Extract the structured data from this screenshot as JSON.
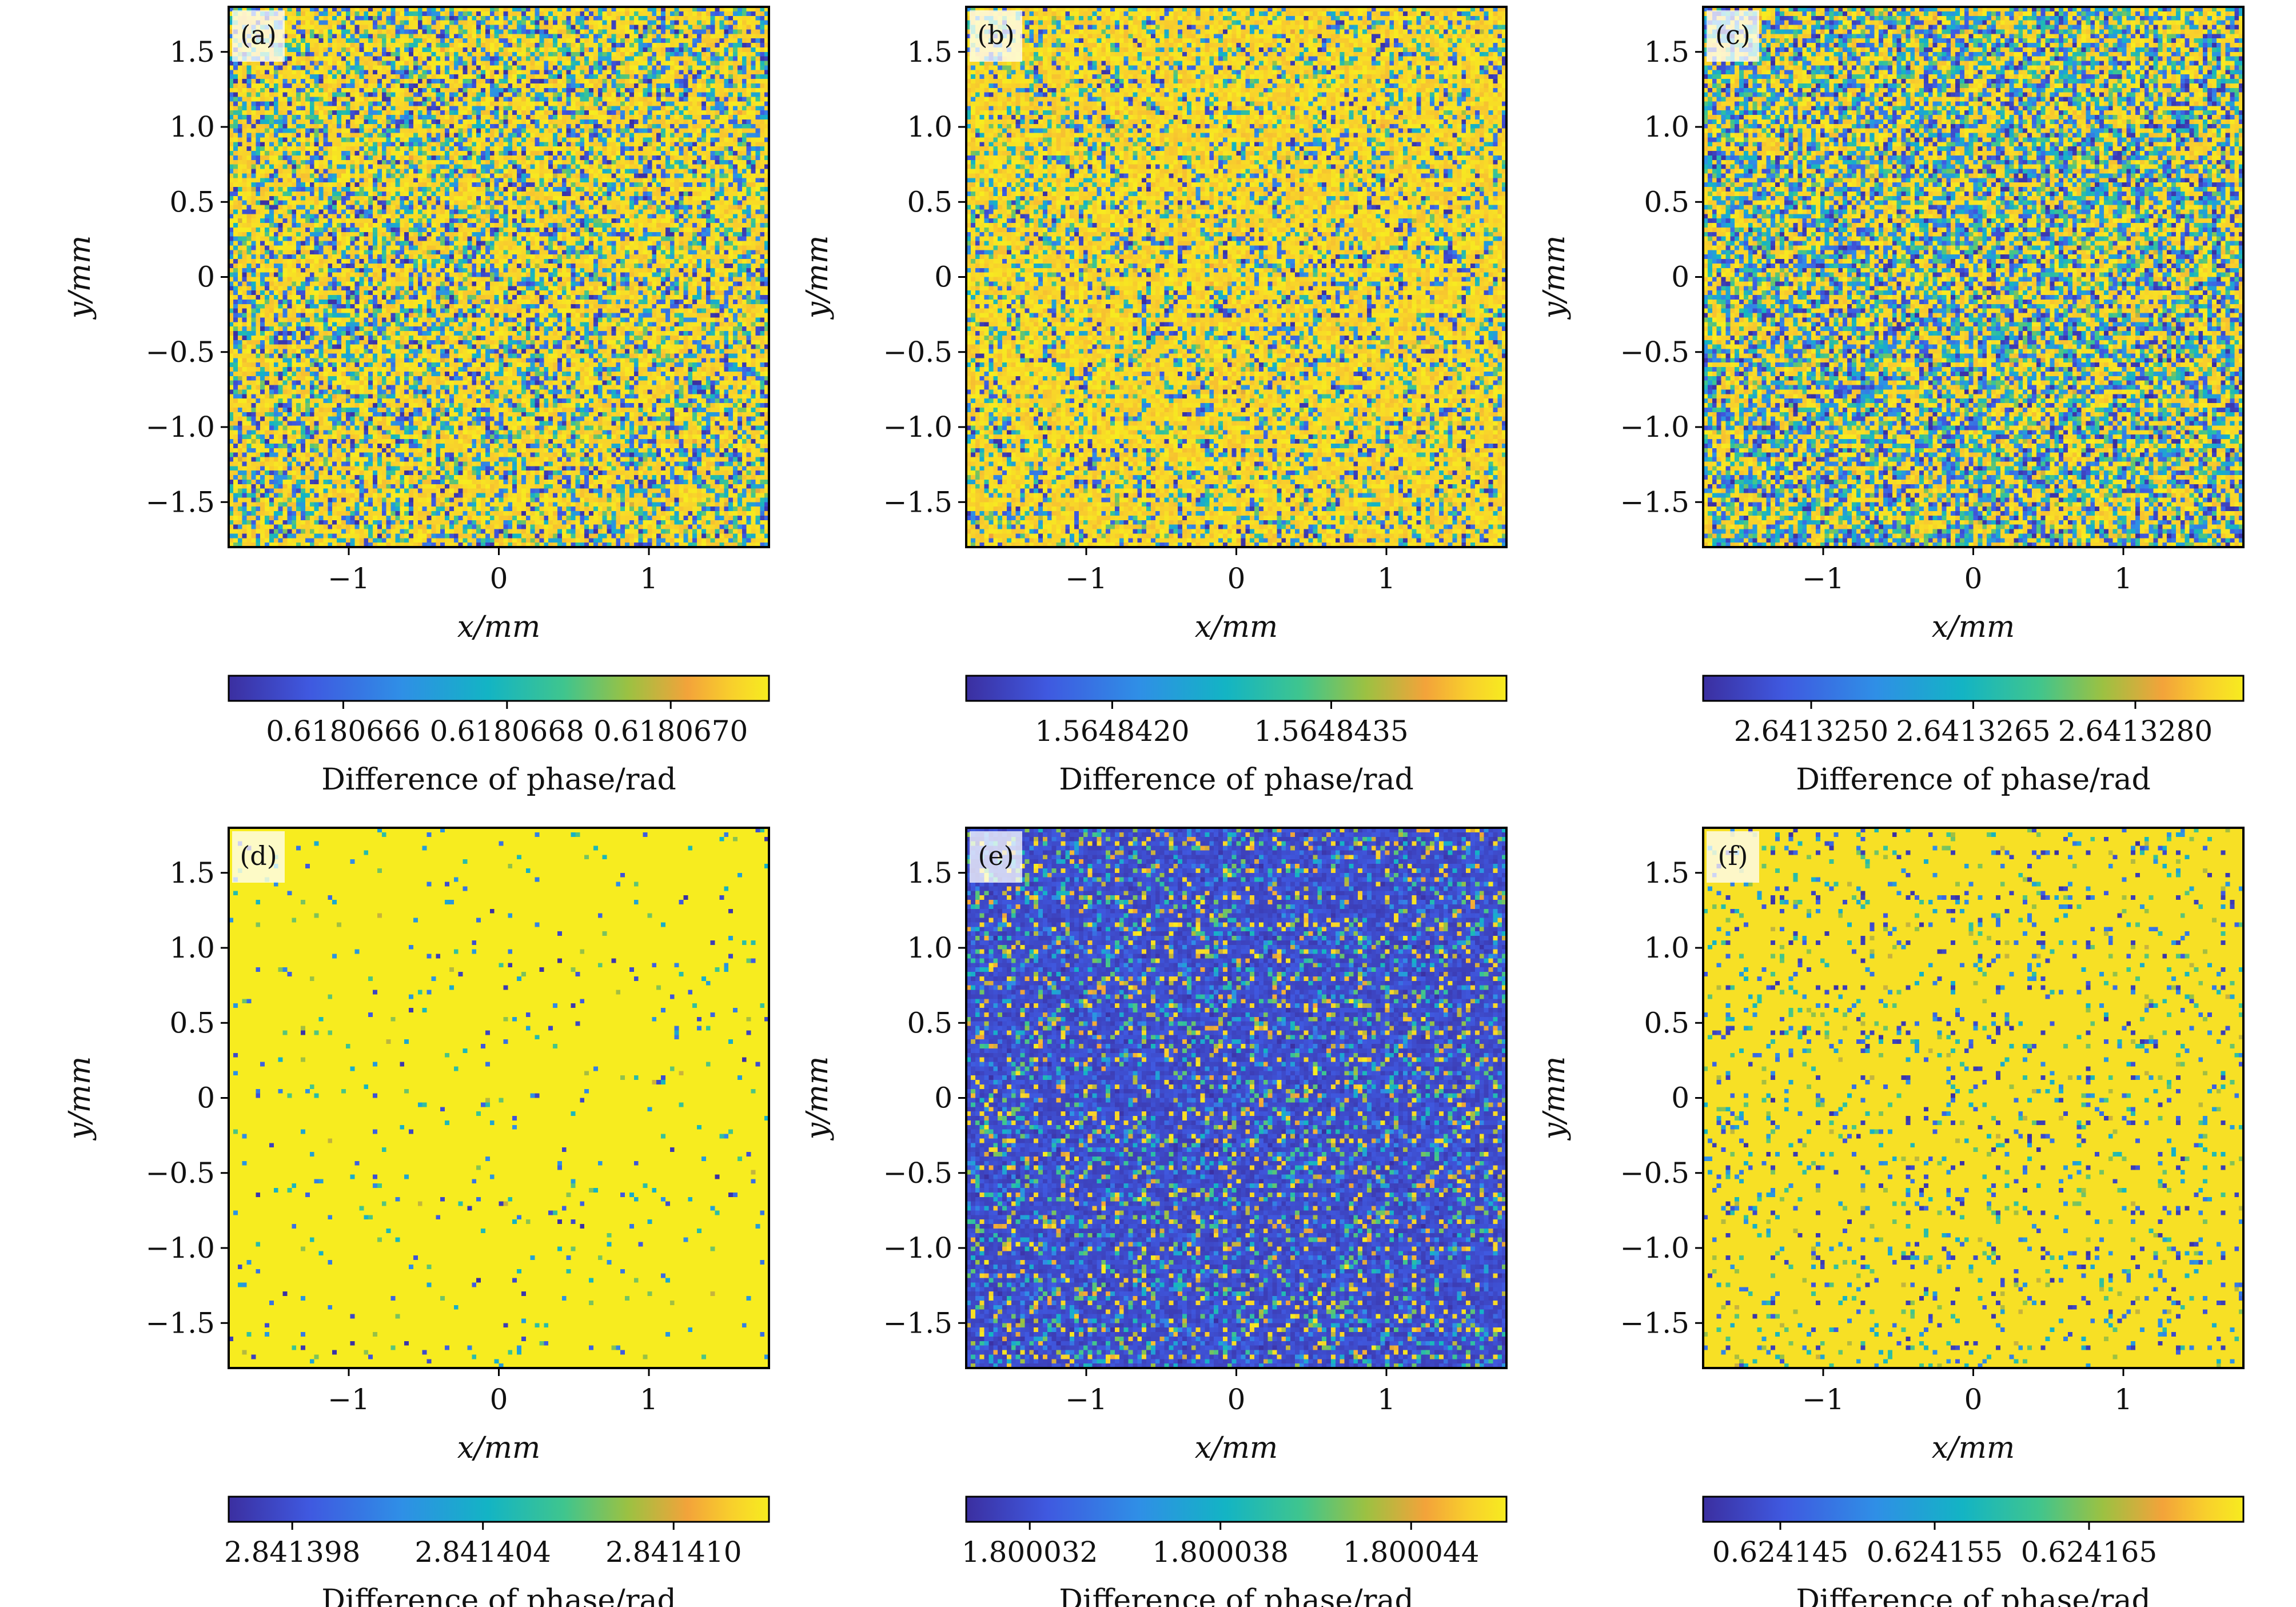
{
  "colors": {
    "viridis_low": "#3b2fa0",
    "viridis_mid": "#21a3b4",
    "viridis_high": "#f7ec1f",
    "frame": "#000000"
  },
  "chart_data": [
    {
      "type": "heatmap",
      "panel_label": "(a)",
      "xlabel": "x/mm",
      "ylabel": "y/mm",
      "xlim": [
        -1.8,
        1.8
      ],
      "ylim": [
        -1.8,
        1.8
      ],
      "xticks": [
        -1,
        0,
        1
      ],
      "xtick_labels": [
        "−1",
        "0",
        "1"
      ],
      "yticks": [
        -1.5,
        -1.0,
        -0.5,
        0,
        0.5,
        1.0,
        1.5
      ],
      "ytick_labels": [
        "−1.5",
        "−1.0",
        "−0.5",
        "0",
        "0.5",
        "1.0",
        "1.5"
      ],
      "pattern": "noise",
      "dominant_level": 0.6,
      "colorbar": {
        "label": "Difference of phase/rad",
        "min": 0.61806646,
        "max": 0.61806712,
        "ticks": [
          0.6180666,
          0.6180668,
          0.618067
        ],
        "tick_labels": [
          "0.6180666",
          "0.6180668",
          "0.6180670"
        ]
      }
    },
    {
      "type": "heatmap",
      "panel_label": "(b)",
      "xlabel": "x/mm",
      "ylabel": "y/mm",
      "xlim": [
        -1.8,
        1.8
      ],
      "ylim": [
        -1.8,
        1.8
      ],
      "xticks": [
        -1,
        0,
        1
      ],
      "xtick_labels": [
        "−1",
        "0",
        "1"
      ],
      "yticks": [
        -1.5,
        -1.0,
        -0.5,
        0,
        0.5,
        1.0,
        1.5
      ],
      "ytick_labels": [
        "−1.5",
        "−1.0",
        "−0.5",
        "0",
        "0.5",
        "1.0",
        "1.5"
      ],
      "pattern": "noise",
      "dominant_level": 0.75,
      "colorbar": {
        "label": "Difference of phase/rad",
        "min": 1.564841,
        "max": 1.5648447,
        "ticks": [
          1.564842,
          1.5648435
        ],
        "tick_labels": [
          "1.5648420",
          "1.5648435"
        ]
      }
    },
    {
      "type": "heatmap",
      "panel_label": "(c)",
      "xlabel": "x/mm",
      "ylabel": "y/mm",
      "xlim": [
        -1.8,
        1.8
      ],
      "ylim": [
        -1.8,
        1.8
      ],
      "xticks": [
        -1,
        0,
        1
      ],
      "xtick_labels": [
        "−1",
        "0",
        "1"
      ],
      "yticks": [
        -1.5,
        -1.0,
        -0.5,
        0,
        0.5,
        1.0,
        1.5
      ],
      "ytick_labels": [
        "−1.5",
        "−1.0",
        "−0.5",
        "0",
        "0.5",
        "1.0",
        "1.5"
      ],
      "pattern": "noise",
      "dominant_level": 0.45,
      "colorbar": {
        "label": "Difference of phase/rad",
        "min": 2.641324,
        "max": 2.641329,
        "ticks": [
          2.641325,
          2.6413265,
          2.641328
        ],
        "tick_labels": [
          "2.6413250",
          "2.6413265",
          "2.6413280"
        ]
      }
    },
    {
      "type": "heatmap",
      "panel_label": "(d)",
      "xlabel": "x/mm",
      "ylabel": "y/mm",
      "xlim": [
        -1.8,
        1.8
      ],
      "ylim": [
        -1.8,
        1.8
      ],
      "xticks": [
        -1,
        0,
        1
      ],
      "xtick_labels": [
        "−1",
        "0",
        "1"
      ],
      "yticks": [
        -1.5,
        -1.0,
        -0.5,
        0,
        0.5,
        1.0,
        1.5
      ],
      "ytick_labels": [
        "−1.5",
        "−1.0",
        "−0.5",
        "0",
        "0.5",
        "1.0",
        "1.5"
      ],
      "pattern": "mostly-high",
      "dominant_level": 0.97,
      "colorbar": {
        "label": "Difference of phase/rad",
        "min": 2.841396,
        "max": 2.841413,
        "ticks": [
          2.841398,
          2.841404,
          2.84141
        ],
        "tick_labels": [
          "2.841398",
          "2.841404",
          "2.841410"
        ]
      }
    },
    {
      "type": "heatmap",
      "panel_label": "(e)",
      "xlabel": "x/mm",
      "ylabel": "y/mm",
      "xlim": [
        -1.8,
        1.8
      ],
      "ylim": [
        -1.8,
        1.8
      ],
      "xticks": [
        -1,
        0,
        1
      ],
      "xtick_labels": [
        "−1",
        "0",
        "1"
      ],
      "yticks": [
        -1.5,
        -1.0,
        -0.5,
        0,
        0.5,
        1.0,
        1.5
      ],
      "ytick_labels": [
        "−1.5",
        "−1.0",
        "−0.5",
        "0",
        "0.5",
        "1.0",
        "1.5"
      ],
      "pattern": "dots-on-low",
      "dominant_level": 0.08,
      "colorbar": {
        "label": "Difference of phase/rad",
        "min": 1.80003,
        "max": 1.800047,
        "ticks": [
          1.800032,
          1.800038,
          1.800044
        ],
        "tick_labels": [
          "1.800032",
          "1.800038",
          "1.800044"
        ]
      }
    },
    {
      "type": "heatmap",
      "panel_label": "(f)",
      "xlabel": "x/mm",
      "ylabel": "y/mm",
      "xlim": [
        -1.8,
        1.8
      ],
      "ylim": [
        -1.8,
        1.8
      ],
      "xticks": [
        -1,
        0,
        1
      ],
      "xtick_labels": [
        "−1",
        "0",
        "1"
      ],
      "yticks": [
        -1.5,
        -1.0,
        -0.5,
        0,
        0.5,
        1.0,
        1.5
      ],
      "ytick_labels": [
        "−1.5",
        "−1.0",
        "−0.5",
        "0",
        "0.5",
        "1.0",
        "1.5"
      ],
      "pattern": "dots-on-high",
      "dominant_level": 0.9,
      "colorbar": {
        "label": "Difference of phase/rad",
        "min": 0.62414,
        "max": 0.624175,
        "ticks": [
          0.624145,
          0.624155,
          0.624165
        ],
        "tick_labels": [
          "0.624145",
          "0.624155",
          "0.624165"
        ]
      }
    }
  ]
}
